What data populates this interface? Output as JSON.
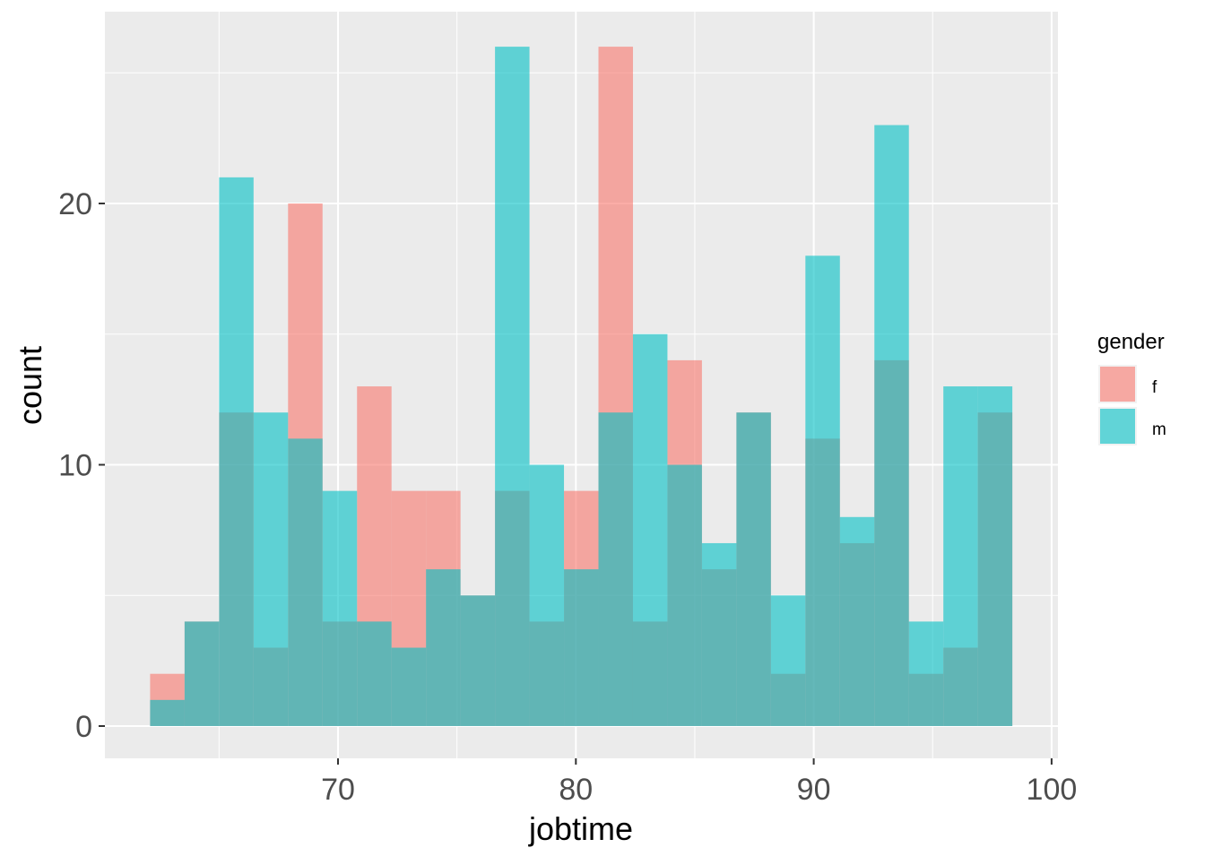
{
  "chart_data": {
    "type": "bar",
    "subtype": "overlapping histogram",
    "xlabel": "jobtime",
    "ylabel": "count",
    "xlim": [
      60,
      100
    ],
    "ylim": [
      -1.2,
      27
    ],
    "x_ticks": [
      70,
      80,
      90,
      100
    ],
    "y_ticks": [
      0,
      10,
      20
    ],
    "grid": true,
    "bins": {
      "edges": [
        62.1,
        63.55,
        65.0,
        66.45,
        67.9,
        69.35,
        70.8,
        72.25,
        73.7,
        75.15,
        76.6,
        78.05,
        79.5,
        80.95,
        82.4,
        83.85,
        85.3,
        86.75,
        88.2,
        89.65,
        91.1,
        92.55,
        94.0,
        95.45,
        96.9,
        98.35
      ]
    },
    "series": [
      {
        "name": "f",
        "color": "#F8766D",
        "values": [
          2,
          4,
          12,
          3,
          20,
          4,
          13,
          9,
          9,
          5,
          9,
          4,
          9,
          26,
          4,
          14,
          6,
          12,
          2,
          11,
          7,
          14,
          2,
          3,
          12
        ]
      },
      {
        "name": "m",
        "color": "#00BFC4",
        "values": [
          1,
          4,
          21,
          12,
          11,
          9,
          4,
          3,
          6,
          5,
          26,
          10,
          6,
          12,
          15,
          10,
          7,
          12,
          5,
          18,
          8,
          23,
          4,
          13,
          13
        ]
      }
    ],
    "legend": {
      "title": "gender",
      "position": "right"
    }
  }
}
